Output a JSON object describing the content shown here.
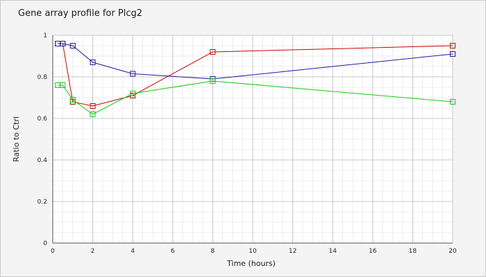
{
  "chart_data": {
    "type": "line",
    "title": "Gene array profile for Plcg2",
    "xlabel": "Time (hours)",
    "ylabel": "Ratio to Ctrl",
    "xlim": [
      0,
      20
    ],
    "ylim": [
      0,
      1
    ],
    "x_ticks": [
      0,
      2,
      4,
      6,
      8,
      10,
      12,
      14,
      16,
      18,
      20
    ],
    "y_ticks": [
      0,
      0.2,
      0.4,
      0.6,
      0.8,
      1
    ],
    "grid": true,
    "marker": "square",
    "series": [
      {
        "color": "#cc0000",
        "x": [
          0.25,
          0.5,
          1,
          2,
          4,
          8,
          20
        ],
        "y": [
          0.96,
          0.96,
          0.68,
          0.66,
          0.71,
          0.92,
          0.95
        ]
      },
      {
        "color": "#1a1aa6",
        "x": [
          0.25,
          0.5,
          1,
          2,
          4,
          8,
          20
        ],
        "y": [
          0.96,
          0.96,
          0.95,
          0.87,
          0.815,
          0.79,
          0.91
        ]
      },
      {
        "color": "#11cc11",
        "x": [
          0.25,
          0.5,
          1,
          2,
          4,
          8,
          20
        ],
        "y": [
          0.76,
          0.76,
          0.69,
          0.62,
          0.72,
          0.78,
          0.68
        ]
      }
    ]
  }
}
